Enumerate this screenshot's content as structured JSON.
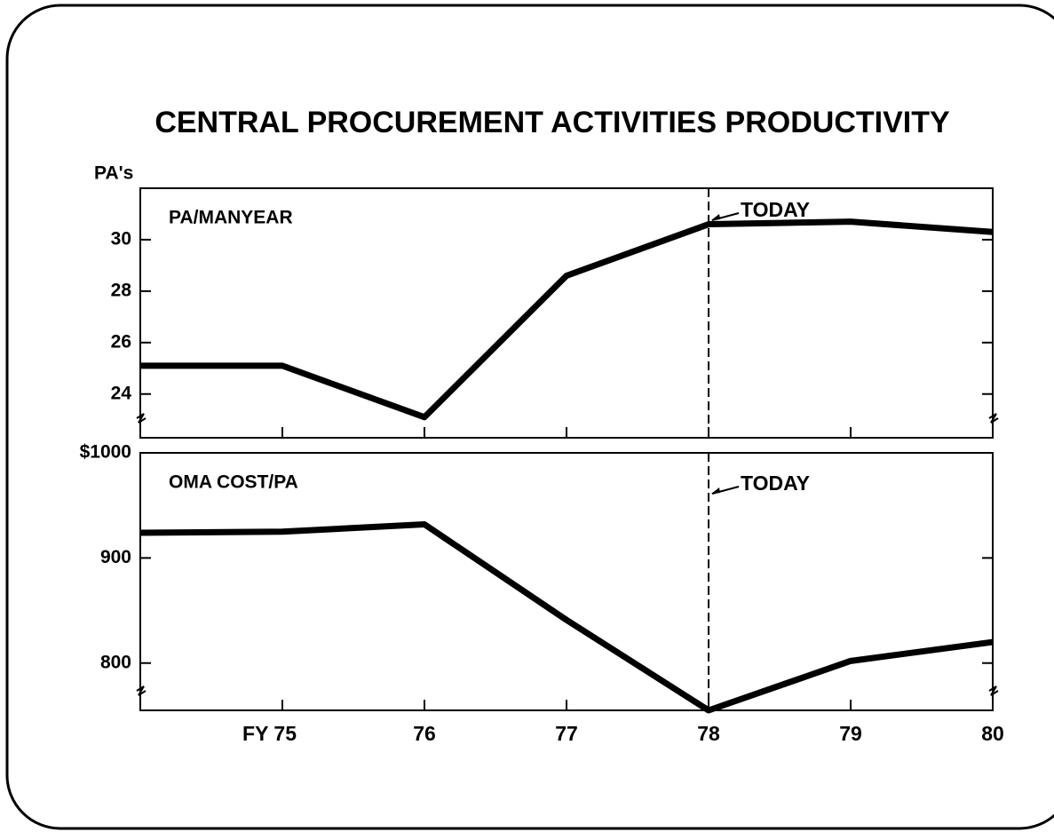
{
  "title": "CENTRAL PROCUREMENT ACTIVITIES PRODUCTIVITY",
  "chart_data": [
    {
      "type": "line",
      "title": "PA/MANYEAR",
      "y_label": "PA's",
      "x": [
        74,
        75,
        76,
        77,
        78,
        79,
        80
      ],
      "series": [
        {
          "name": "PA/MANYEAR",
          "color": "#000000",
          "values": [
            25.1,
            25.1,
            23.1,
            28.6,
            30.6,
            30.7,
            30.3
          ]
        }
      ],
      "xlim": [
        74,
        80
      ],
      "xticks": [
        75,
        76,
        77,
        78,
        79,
        80
      ],
      "ylim": [
        22.3,
        32
      ],
      "yticks": [
        24,
        26,
        28,
        30
      ],
      "annotations": [
        {
          "text": "TODAY",
          "x": 78
        }
      ]
    },
    {
      "type": "line",
      "title": "OMA COST/PA",
      "x": [
        74,
        75,
        76,
        77,
        78,
        79,
        80
      ],
      "series": [
        {
          "name": "OMA COST/PA",
          "color": "#000000",
          "values": [
            924,
            925,
            932,
            841,
            755,
            802,
            820
          ]
        }
      ],
      "xlim": [
        74,
        80
      ],
      "xticks": [
        {
          "value": 75,
          "label": "FY 75"
        },
        76,
        77,
        78,
        79,
        80
      ],
      "ylim": [
        755,
        1000
      ],
      "yticks": [
        800,
        900,
        {
          "value": 1000,
          "label": "$1000"
        }
      ],
      "annotations": [
        {
          "text": "TODAY",
          "x": 78
        }
      ]
    }
  ]
}
